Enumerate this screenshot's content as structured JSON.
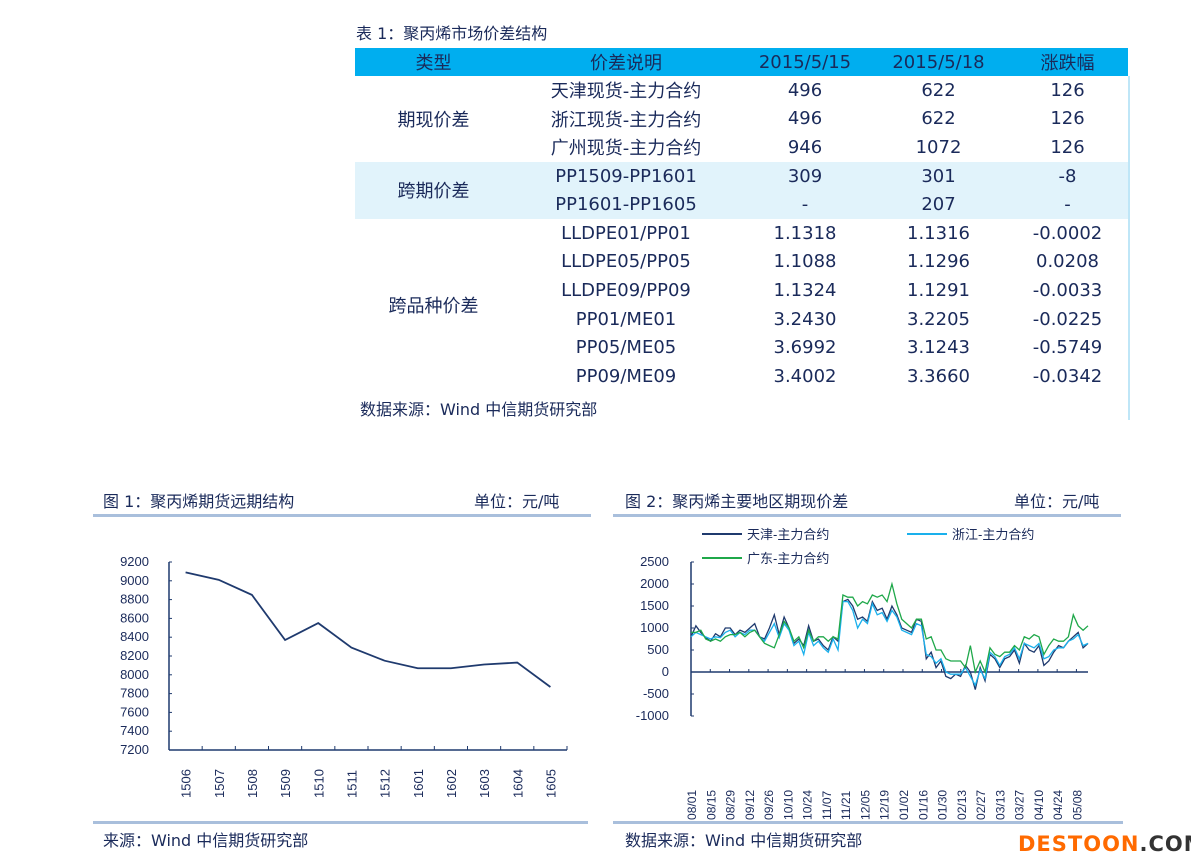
{
  "table": {
    "caption": "表 1：聚丙烯市场价差结构",
    "headers": [
      "类型",
      "价差说明",
      "2015/5/15",
      "2015/5/18",
      "涨跌幅"
    ],
    "groups": [
      {
        "type": "期现价差",
        "rows": [
          [
            "天津现货-主力合约",
            "496",
            "622",
            "126"
          ],
          [
            "浙江现货-主力合约",
            "496",
            "622",
            "126"
          ],
          [
            "广州现货-主力合约",
            "946",
            "1072",
            "126"
          ]
        ]
      },
      {
        "type": "跨期价差",
        "rows": [
          [
            "PP1509-PP1601",
            "309",
            "301",
            "-8"
          ],
          [
            "PP1601-PP1605",
            "-",
            "207",
            "-"
          ]
        ]
      },
      {
        "type": "跨品种价差",
        "rows": [
          [
            "LLDPE01/PP01",
            "1.1318",
            "1.1316",
            "-0.0002"
          ],
          [
            "LLDPE05/PP05",
            "1.1088",
            "1.1296",
            "0.0208"
          ],
          [
            "LLDPE09/PP09",
            "1.1324",
            "1.1291",
            "-0.0033"
          ],
          [
            "PP01/ME01",
            "3.2430",
            "3.2205",
            "-0.0225"
          ],
          [
            "PP05/ME05",
            "3.6992",
            "3.1243",
            "-0.5749"
          ],
          [
            "PP09/ME09",
            "3.4002",
            "3.3660",
            "-0.0342"
          ]
        ]
      }
    ],
    "source": "数据来源：Wind  中信期货研究部"
  },
  "chart_data": [
    {
      "type": "line",
      "title": "图 1：聚丙烯期货远期结构",
      "unit": "单位：元/吨",
      "source": "来源：Wind  中信期货研究部",
      "categories": [
        "1506",
        "1507",
        "1508",
        "1509",
        "1510",
        "1511",
        "1512",
        "1601",
        "1602",
        "1603",
        "1604",
        "1605"
      ],
      "values": [
        9090,
        9010,
        8850,
        8370,
        8550,
        8290,
        8150,
        8070,
        8070,
        8110,
        8130,
        7870
      ],
      "ylim": [
        7200,
        9200
      ],
      "yticks": [
        9200,
        9000,
        8800,
        8600,
        8400,
        8200,
        8000,
        7800,
        7600,
        7400,
        7200
      ],
      "color": "#1f3a6e"
    },
    {
      "type": "line",
      "title": "图 2：聚丙烯主要地区期现价差",
      "unit": "单位：元/吨",
      "source": "数据来源：Wind  中信期货研究部",
      "xticks": [
        "2014/08/01",
        "2014/08/15",
        "2014/08/29",
        "2014/09/12",
        "2014/09/26",
        "2014/10/10",
        "2014/10/24",
        "2014/11/07",
        "2014/11/21",
        "2014/12/05",
        "2014/12/19",
        "2015/01/02",
        "2015/01/16",
        "2015/01/30",
        "2015/02/13",
        "2015/02/27",
        "2015/03/13",
        "2015/03/27",
        "2015/04/10",
        "2015/04/24",
        "2015/05/08"
      ],
      "ylim": [
        -1000,
        2500
      ],
      "yticks": [
        2500,
        2000,
        1500,
        1000,
        500,
        0,
        -500,
        -1000
      ],
      "series": [
        {
          "name": "天津-主力合约",
          "color": "#1f3a6e",
          "values": [
            800,
            1050,
            900,
            780,
            700,
            870,
            800,
            1000,
            1000,
            850,
            950,
            900,
            1000,
            1100,
            800,
            750,
            1000,
            1300,
            850,
            1250,
            1000,
            650,
            750,
            600,
            1050,
            700,
            750,
            600,
            500,
            800,
            700,
            1600,
            1650,
            1500,
            1200,
            1250,
            1150,
            1600,
            1400,
            1450,
            1200,
            1500,
            1300,
            1000,
            950,
            900,
            1200,
            1150,
            300,
            450,
            100,
            250,
            -100,
            -150,
            -50,
            -100,
            150,
            0,
            -400,
            100,
            -200,
            400,
            300,
            100,
            300,
            350,
            500,
            200,
            650,
            500,
            450,
            600,
            150,
            250,
            450,
            600,
            550,
            700,
            800,
            900,
            550,
            650
          ]
        },
        {
          "name": "浙江-主力合约",
          "color": "#1ab0ec",
          "values": [
            800,
            900,
            850,
            800,
            750,
            800,
            780,
            900,
            950,
            800,
            900,
            850,
            950,
            950,
            800,
            700,
            900,
            1100,
            780,
            1100,
            950,
            600,
            700,
            400,
            900,
            600,
            700,
            550,
            450,
            750,
            500,
            1600,
            1600,
            1400,
            1000,
            1200,
            1100,
            1550,
            1300,
            1350,
            1150,
            1400,
            1250,
            950,
            900,
            850,
            1100,
            1050,
            400,
            350,
            200,
            300,
            0,
            -50,
            -50,
            -50,
            100,
            -100,
            -300,
            50,
            -150,
            450,
            350,
            150,
            350,
            400,
            550,
            300,
            650,
            600,
            550,
            650,
            300,
            350,
            500,
            550,
            550,
            700,
            750,
            850,
            600,
            650
          ]
        },
        {
          "name": "广东-主力合约",
          "color": "#1fa84a",
          "values": [
            900,
            900,
            950,
            750,
            700,
            750,
            700,
            800,
            850,
            850,
            900,
            800,
            900,
            950,
            800,
            650,
            600,
            550,
            850,
            1150,
            1000,
            700,
            800,
            550,
            950,
            700,
            800,
            800,
            700,
            800,
            750,
            1750,
            1700,
            1700,
            1500,
            1600,
            1550,
            1750,
            1700,
            1750,
            1600,
            2000,
            1550,
            1200,
            1100,
            1000,
            1200,
            1200,
            750,
            800,
            500,
            500,
            300,
            250,
            250,
            250,
            100,
            600,
            0,
            250,
            0,
            550,
            400,
            350,
            450,
            450,
            600,
            500,
            800,
            750,
            850,
            800,
            400,
            600,
            750,
            700,
            700,
            800,
            1300,
            1050,
            950,
            1050
          ]
        }
      ]
    }
  ],
  "watermark": {
    "brand": "DESTOON",
    ".com": ".COM"
  }
}
